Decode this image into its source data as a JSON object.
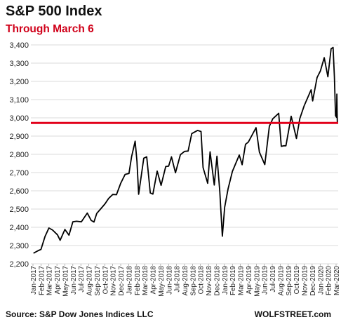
{
  "header": {
    "title": "S&P 500 Index",
    "subtitle": "Through March 6"
  },
  "footer": {
    "source": "Source: S&P Dow Jones Indices LLC",
    "brand": "WOLFSTREET.com"
  },
  "colors": {
    "line": "#000000",
    "reference_line": "#e2001a",
    "grid": "#cfcfcf",
    "subtitle": "#d0021b"
  },
  "chart_data": {
    "type": "line",
    "title": "S&P 500 Index",
    "subtitle": "Through March 6",
    "ylim": [
      2200,
      3400
    ],
    "yticks": [
      2200,
      2300,
      2400,
      2500,
      2600,
      2700,
      2800,
      2900,
      3000,
      3100,
      3200,
      3300,
      3400
    ],
    "ytick_labels": [
      "2,200",
      "2,300",
      "2,400",
      "2,500",
      "2,600",
      "2,700",
      "2,800",
      "2,900",
      "3,000",
      "3,100",
      "3,200",
      "3,300",
      "3,400"
    ],
    "xtick_labels": [
      "Jan-2017",
      "Feb-2017",
      "Mar-2017",
      "Apr-2017",
      "May-2017",
      "Jun-2017",
      "Jul-2017",
      "Aug-2017",
      "Sep-2017",
      "Oct-2017",
      "Nov-2017",
      "Dec-2017",
      "Jan-2018",
      "Feb-2018",
      "Mar-2018",
      "Apr-2018",
      "May-2018",
      "Jun-2018",
      "Jul-2018",
      "Aug-2018",
      "Sep-2018",
      "Oct-2018",
      "Nov-2018",
      "Dec-2018",
      "Jan-2019",
      "Feb-2019",
      "Mar-2019",
      "Apr-2019",
      "May-2019",
      "Jun-2019",
      "Jul-2019",
      "Aug-2019",
      "Sep-2019",
      "Oct-2019",
      "Nov-2019",
      "Dec-2019",
      "Jan-2020",
      "Feb-2020",
      "Mar-2020"
    ],
    "grid": true,
    "reference_line": {
      "y": 2972
    },
    "series": [
      {
        "x": [
          "2017-01-03",
          "2017-01-20",
          "2017-02-01",
          "2017-02-15",
          "2017-03-01",
          "2017-03-15",
          "2017-04-03",
          "2017-04-13",
          "2017-05-01",
          "2017-05-17",
          "2017-06-01",
          "2017-06-15",
          "2017-07-03",
          "2017-07-26",
          "2017-08-10",
          "2017-08-21",
          "2017-09-01",
          "2017-09-15",
          "2017-10-02",
          "2017-10-16",
          "2017-11-01",
          "2017-11-15",
          "2017-12-01",
          "2017-12-18",
          "2018-01-02",
          "2018-01-12",
          "2018-01-26",
          "2018-02-02",
          "2018-02-08",
          "2018-02-26",
          "2018-03-09",
          "2018-03-23",
          "2018-04-02",
          "2018-04-18",
          "2018-05-03",
          "2018-05-21",
          "2018-06-01",
          "2018-06-12",
          "2018-06-27",
          "2018-07-16",
          "2018-08-01",
          "2018-08-15",
          "2018-08-29",
          "2018-09-20",
          "2018-10-03",
          "2018-10-11",
          "2018-10-29",
          "2018-11-07",
          "2018-11-23",
          "2018-12-03",
          "2018-12-14",
          "2018-12-24",
          "2019-01-02",
          "2019-01-15",
          "2019-02-01",
          "2019-02-25",
          "2019-03-08",
          "2019-03-21",
          "2019-04-01",
          "2019-04-30",
          "2019-05-13",
          "2019-06-03",
          "2019-06-20",
          "2019-07-03",
          "2019-07-26",
          "2019-08-05",
          "2019-08-15",
          "2019-08-23",
          "2019-09-12",
          "2019-10-02",
          "2019-10-15",
          "2019-11-01",
          "2019-11-27",
          "2019-12-03",
          "2019-12-20",
          "2020-01-02",
          "2020-01-17",
          "2020-01-31",
          "2020-02-12",
          "2020-02-19",
          "2020-02-24",
          "2020-02-28",
          "2020-03-03",
          "2020-03-04",
          "2020-03-05",
          "2020-03-06"
        ],
        "y": [
          2258,
          2271,
          2279,
          2349,
          2396,
          2385,
          2359,
          2329,
          2388,
          2357,
          2430,
          2433,
          2430,
          2478,
          2438,
          2429,
          2476,
          2500,
          2529,
          2558,
          2580,
          2579,
          2642,
          2690,
          2695,
          2786,
          2872,
          2762,
          2581,
          2779,
          2786,
          2588,
          2582,
          2708,
          2630,
          2733,
          2735,
          2786,
          2699,
          2798,
          2816,
          2818,
          2914,
          2931,
          2925,
          2728,
          2641,
          2814,
          2632,
          2790,
          2599,
          2351,
          2510,
          2610,
          2706,
          2796,
          2743,
          2855,
          2867,
          2946,
          2812,
          2744,
          2954,
          2995,
          3025,
          2844,
          2847,
          2847,
          3009,
          2887,
          2996,
          3066,
          3154,
          3093,
          3221,
          3257,
          3330,
          3225,
          3379,
          3386,
          3225,
          3012,
          3003,
          3130,
          3023,
          2972
        ]
      }
    ]
  }
}
